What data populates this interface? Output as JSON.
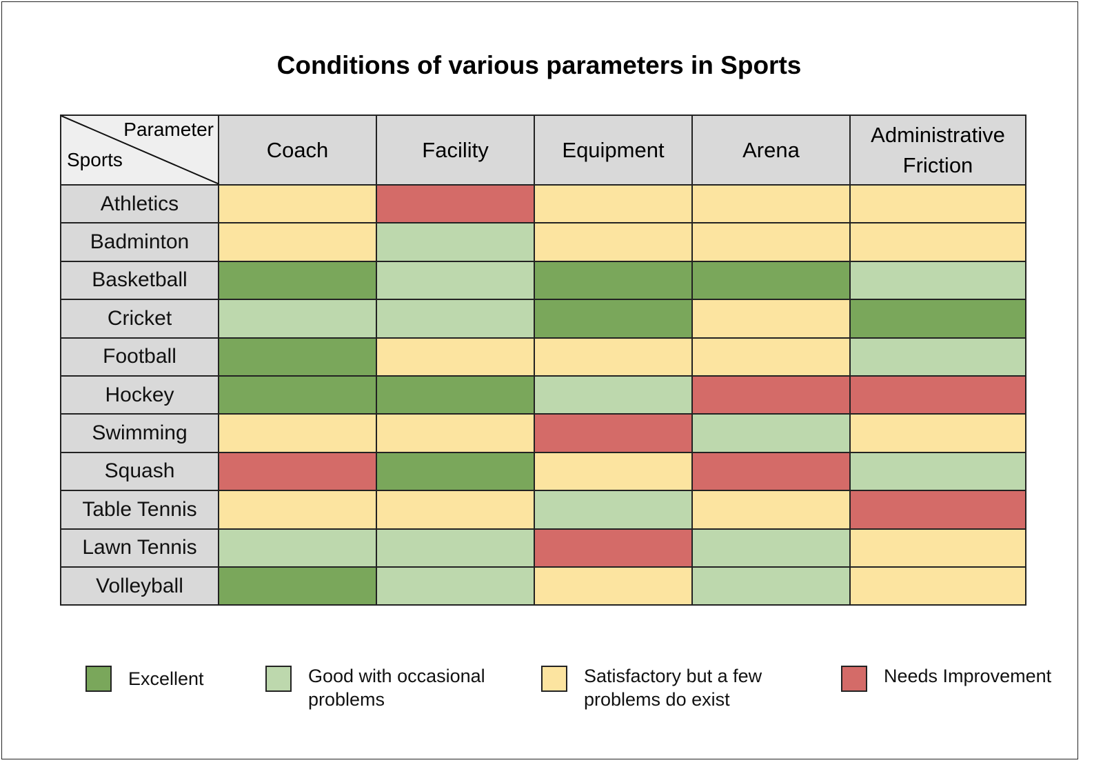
{
  "chart_data": {
    "type": "heatmap",
    "title": "Conditions of various parameters in Sports",
    "corner": {
      "column_label": "Parameter",
      "row_label": "Sports"
    },
    "columns": [
      "Coach",
      "Facility",
      "Equipment",
      "Arena",
      "Administrative Friction"
    ],
    "rows": [
      {
        "sport": "Athletics",
        "values": [
          "Satisfactory",
          "Needs Improvement",
          "Satisfactory",
          "Satisfactory",
          "Satisfactory"
        ]
      },
      {
        "sport": "Badminton",
        "values": [
          "Satisfactory",
          "Good",
          "Satisfactory",
          "Satisfactory",
          "Satisfactory"
        ]
      },
      {
        "sport": "Basketball",
        "values": [
          "Excellent",
          "Good",
          "Excellent",
          "Excellent",
          "Good"
        ]
      },
      {
        "sport": "Cricket",
        "values": [
          "Good",
          "Good",
          "Excellent",
          "Satisfactory",
          "Excellent"
        ]
      },
      {
        "sport": "Football",
        "values": [
          "Excellent",
          "Satisfactory",
          "Satisfactory",
          "Satisfactory",
          "Good"
        ]
      },
      {
        "sport": "Hockey",
        "values": [
          "Excellent",
          "Excellent",
          "Good",
          "Needs Improvement",
          "Needs Improvement"
        ]
      },
      {
        "sport": "Swimming",
        "values": [
          "Satisfactory",
          "Satisfactory",
          "Needs Improvement",
          "Good",
          "Satisfactory"
        ]
      },
      {
        "sport": "Squash",
        "values": [
          "Needs Improvement",
          "Excellent",
          "Satisfactory",
          "Needs Improvement",
          "Good"
        ]
      },
      {
        "sport": "Table Tennis",
        "values": [
          "Satisfactory",
          "Satisfactory",
          "Good",
          "Satisfactory",
          "Needs Improvement"
        ]
      },
      {
        "sport": "Lawn Tennis",
        "values": [
          "Good",
          "Good",
          "Needs Improvement",
          "Good",
          "Satisfactory"
        ]
      },
      {
        "sport": "Volleyball",
        "values": [
          "Excellent",
          "Good",
          "Satisfactory",
          "Good",
          "Satisfactory"
        ]
      }
    ],
    "legend": [
      {
        "key": "Excellent",
        "label": "Excellent",
        "color": "#7aa75b"
      },
      {
        "key": "Good",
        "label": "Good with occasional problems",
        "color": "#bdd8ad"
      },
      {
        "key": "Satisfactory",
        "label": "Satisfactory but a few problems do exist",
        "color": "#fce4a0"
      },
      {
        "key": "Needs Improvement",
        "label": "Needs Improvement",
        "color": "#d46b68"
      }
    ],
    "legend_position": "bottom"
  }
}
